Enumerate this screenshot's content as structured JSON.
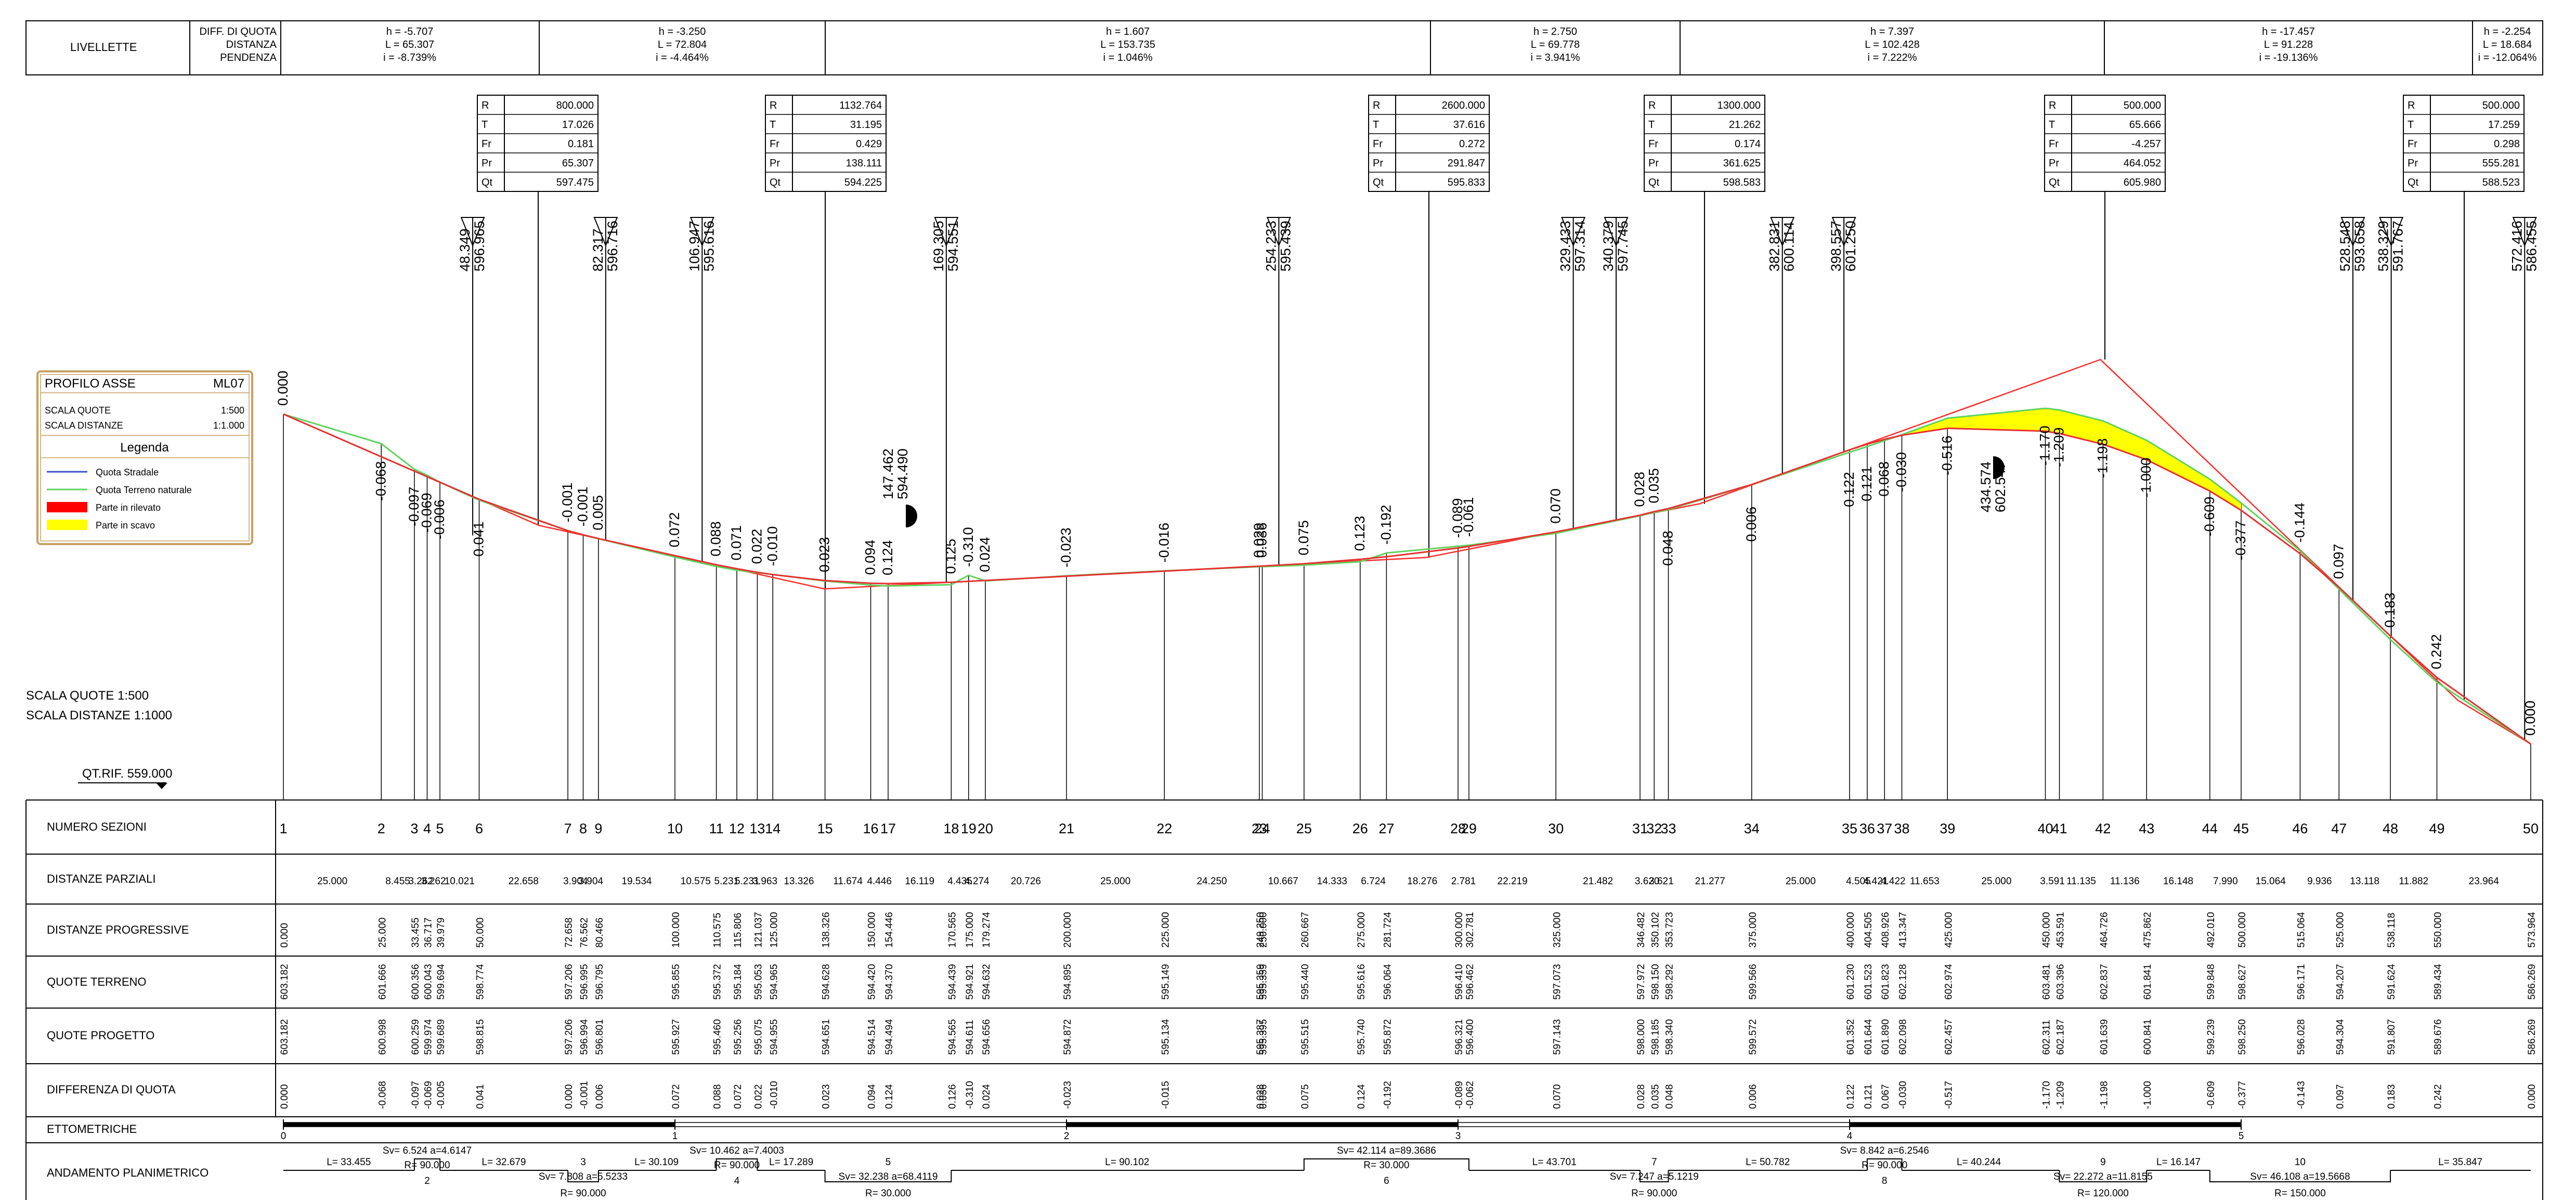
{
  "header": {
    "label_main": "LIVELLETTE",
    "label_mid": [
      "DIFF. DI QUOTA",
      "DISTANZA",
      "PENDENZA"
    ],
    "grades": [
      {
        "h": "h = -5.707",
        "L": "L = 65.307",
        "i": "i = -8.739%"
      },
      {
        "h": "h = -3.250",
        "L": "L = 72.804",
        "i": "i = -4.464%"
      },
      {
        "h": "h = 1.607",
        "L": "L = 153.735",
        "i": "i = 1.046%"
      },
      {
        "h": "h = 2.750",
        "L": "L = 69.778",
        "i": "i = 3.941%"
      },
      {
        "h": "h = 7.397",
        "L": "L = 102.428",
        "i": "i = 7.222%"
      },
      {
        "h": "h = -17.457",
        "L": "L = 91.228",
        "i": "i = -19.136%"
      },
      {
        "h": "h = -2.254",
        "L": "L = 18.684",
        "i": "i = -12.064%"
      }
    ]
  },
  "vertical_curves": {
    "row_labels": [
      "R",
      "T",
      "Fr",
      "Pr",
      "Qt"
    ],
    "items": [
      {
        "values": [
          "800.000",
          "17.026",
          "0.181",
          "65.307",
          "597.475"
        ]
      },
      {
        "values": [
          "1132.764",
          "31.195",
          "0.429",
          "138.111",
          "594.225"
        ]
      },
      {
        "values": [
          "2600.000",
          "37.616",
          "0.272",
          "291.847",
          "595.833"
        ]
      },
      {
        "values": [
          "1300.000",
          "21.262",
          "0.174",
          "361.625",
          "598.583"
        ]
      },
      {
        "values": [
          "500.000",
          "65.666",
          "-4.257",
          "464.052",
          "605.980"
        ]
      },
      {
        "values": [
          "500.000",
          "17.259",
          "0.298",
          "555.281",
          "588.523"
        ]
      }
    ]
  },
  "tangent_points": [
    [
      "48.349",
      "596.965"
    ],
    [
      "82.317",
      "596.716"
    ],
    [
      "106.947",
      "595.616"
    ],
    [
      "169.305",
      "594.551"
    ],
    [
      "254.233",
      "595.439"
    ],
    [
      "329.433",
      "597.314"
    ],
    [
      "340.379",
      "597.745"
    ],
    [
      "382.831",
      "600.114"
    ],
    [
      "398.557",
      "601.250"
    ],
    [
      "528.548",
      "593.658"
    ],
    [
      "538.329",
      "591.767"
    ],
    [
      "572.416",
      "586.455"
    ]
  ],
  "low_point_label": [
    "147.462",
    "594.490"
  ],
  "high_point_label": [
    "434.574",
    "602.547"
  ],
  "left_legend": {
    "title": "PROFILO ASSE",
    "code": "ML07",
    "scale_q_label": "SCALA QUOTE",
    "scale_q_value": "1:500",
    "scale_d_label": "SCALA DISTANZE",
    "scale_d_value": "1:1.000",
    "legend_title": "Legenda",
    "items": [
      {
        "label": "Quota Stradale",
        "color": "#3b50c8"
      },
      {
        "label": "Quota Terreno naturale",
        "color": "#5fd35f"
      },
      {
        "label": "Parte in rilevato",
        "color": "#ff0000"
      },
      {
        "label": "Parte in scavo",
        "color": "#ffff00"
      }
    ]
  },
  "scale_note": {
    "quote": "SCALA QUOTE    1:500",
    "distanze": "SCALA DISTANZE   1:1000"
  },
  "datum": "QT.RIF. 559.000",
  "diffs_plot": [
    "0.000",
    "-0.068",
    "-0.097",
    "-0.069",
    "-0.006",
    "0.041",
    "-0.001",
    "-0.001",
    "0.005",
    "0.072",
    "0.088",
    "0.071",
    "0.022",
    "-0.010",
    "0.023",
    "0.094",
    "0.124",
    "0.125",
    "-0.310",
    "0.024",
    "-0.023",
    "-0.016",
    "0.029",
    "0.036",
    "0.075",
    "0.123",
    "-0.192",
    "-0.089",
    "-0.061",
    "0.070",
    "0.028",
    "0.035",
    "0.048",
    "0.006",
    "0.122",
    "0.121",
    "0.068",
    "-0.030",
    "-0.516",
    "-1.170",
    "-1.209",
    "-1.198",
    "-1.000",
    "-0.609",
    "-0.377",
    "-0.144",
    "0.097",
    "0.183",
    "0.242",
    "0.000"
  ],
  "table": {
    "row_labels": [
      "NUMERO SEZIONI",
      "DISTANZE PARZIALI",
      "DISTANZE PROGRESSIVE",
      "QUOTE TERRENO",
      "QUOTE PROGETTO",
      "DIFFERENZA DI QUOTA",
      "ETTOMETRICHE",
      "ANDAMENTO PLANIMETRICO"
    ],
    "sections": [
      {
        "n": "1",
        "prog": "0.000",
        "terreno": "603.182",
        "progetto": "603.182",
        "diff": "0.000"
      },
      {
        "n": "2",
        "prog": "25.000",
        "terreno": "601.666",
        "progetto": "600.998",
        "diff": "-0.068"
      },
      {
        "n": "3",
        "prog": "33.455",
        "terreno": "600.356",
        "progetto": "600.259",
        "diff": "-0.097"
      },
      {
        "n": "4",
        "prog": "36.717",
        "terreno": "600.043",
        "progetto": "599.974",
        "diff": "-0.069"
      },
      {
        "n": "5",
        "prog": "39.979",
        "terreno": "599.694",
        "progetto": "599.689",
        "diff": "-0.005"
      },
      {
        "n": "6",
        "prog": "50.000",
        "terreno": "598.774",
        "progetto": "598.815",
        "diff": "0.041"
      },
      {
        "n": "7",
        "prog": "72.658",
        "terreno": "597.206",
        "progetto": "597.206",
        "diff": "0.000"
      },
      {
        "n": "8",
        "prog": "76.562",
        "terreno": "596.995",
        "progetto": "596.994",
        "diff": "-0.001"
      },
      {
        "n": "9",
        "prog": "80.466",
        "terreno": "596.795",
        "progetto": "596.801",
        "diff": "0.006"
      },
      {
        "n": "10",
        "prog": "100.000",
        "terreno": "595.855",
        "progetto": "595.927",
        "diff": "0.072"
      },
      {
        "n": "11",
        "prog": "110.575",
        "terreno": "595.372",
        "progetto": "595.460",
        "diff": "0.088"
      },
      {
        "n": "12",
        "prog": "115.806",
        "terreno": "595.184",
        "progetto": "595.256",
        "diff": "0.072"
      },
      {
        "n": "13",
        "prog": "121.037",
        "terreno": "595.053",
        "progetto": "595.075",
        "diff": "0.022"
      },
      {
        "n": "14",
        "prog": "125.000",
        "terreno": "594.965",
        "progetto": "594.955",
        "diff": "-0.010"
      },
      {
        "n": "15",
        "prog": "138.326",
        "terreno": "594.628",
        "progetto": "594.651",
        "diff": "0.023"
      },
      {
        "n": "16",
        "prog": "150.000",
        "terreno": "594.420",
        "progetto": "594.514",
        "diff": "0.094"
      },
      {
        "n": "17",
        "prog": "154.446",
        "terreno": "594.370",
        "progetto": "594.494",
        "diff": "0.124"
      },
      {
        "n": "18",
        "prog": "170.565",
        "terreno": "594.439",
        "progetto": "594.565",
        "diff": "0.126"
      },
      {
        "n": "19",
        "prog": "175.000",
        "terreno": "594.921",
        "progetto": "594.611",
        "diff": "-0.310"
      },
      {
        "n": "20",
        "prog": "179.274",
        "terreno": "594.632",
        "progetto": "594.656",
        "diff": "0.024"
      },
      {
        "n": "21",
        "prog": "200.000",
        "terreno": "594.895",
        "progetto": "594.872",
        "diff": "-0.023"
      },
      {
        "n": "22",
        "prog": "225.000",
        "terreno": "595.149",
        "progetto": "595.134",
        "diff": "-0.015"
      },
      {
        "n": "23",
        "prog": "249.250",
        "terreno": "595.359",
        "progetto": "595.387",
        "diff": "0.028"
      },
      {
        "n": "24",
        "prog": "250.000",
        "terreno": "595.359",
        "progetto": "595.395",
        "diff": "0.036"
      },
      {
        "n": "25",
        "prog": "260.667",
        "terreno": "595.440",
        "progetto": "595.515",
        "diff": "0.075"
      },
      {
        "n": "26",
        "prog": "275.000",
        "terreno": "595.616",
        "progetto": "595.740",
        "diff": "0.124"
      },
      {
        "n": "27",
        "prog": "281.724",
        "terreno": "596.064",
        "progetto": "595.872",
        "diff": "-0.192"
      },
      {
        "n": "28",
        "prog": "300.000",
        "terreno": "596.410",
        "progetto": "596.321",
        "diff": "-0.089"
      },
      {
        "n": "29",
        "prog": "302.781",
        "terreno": "596.462",
        "progetto": "596.400",
        "diff": "-0.062"
      },
      {
        "n": "30",
        "prog": "325.000",
        "terreno": "597.073",
        "progetto": "597.143",
        "diff": "0.070"
      },
      {
        "n": "31",
        "prog": "346.482",
        "terreno": "597.972",
        "progetto": "598.000",
        "diff": "0.028"
      },
      {
        "n": "32",
        "prog": "350.102",
        "terreno": "598.150",
        "progetto": "598.185",
        "diff": "0.035"
      },
      {
        "n": "33",
        "prog": "353.723",
        "terreno": "598.292",
        "progetto": "598.340",
        "diff": "0.048"
      },
      {
        "n": "34",
        "prog": "375.000",
        "terreno": "599.566",
        "progetto": "599.572",
        "diff": "0.006"
      },
      {
        "n": "35",
        "prog": "400.000",
        "terreno": "601.230",
        "progetto": "601.352",
        "diff": "0.122"
      },
      {
        "n": "36",
        "prog": "404.505",
        "terreno": "601.523",
        "progetto": "601.644",
        "diff": "0.121"
      },
      {
        "n": "37",
        "prog": "408.926",
        "terreno": "601.823",
        "progetto": "601.890",
        "diff": "0.067"
      },
      {
        "n": "38",
        "prog": "413.347",
        "terreno": "602.128",
        "progetto": "602.098",
        "diff": "-0.030"
      },
      {
        "n": "39",
        "prog": "425.000",
        "terreno": "602.974",
        "progetto": "602.457",
        "diff": "-0.517"
      },
      {
        "n": "40",
        "prog": "450.000",
        "terreno": "603.481",
        "progetto": "602.311",
        "diff": "-1.170"
      },
      {
        "n": "41",
        "prog": "453.591",
        "terreno": "603.396",
        "progetto": "602.187",
        "diff": "-1.209"
      },
      {
        "n": "42",
        "prog": "464.726",
        "terreno": "602.837",
        "progetto": "601.639",
        "diff": "-1.198"
      },
      {
        "n": "43",
        "prog": "475.862",
        "terreno": "601.841",
        "progetto": "600.841",
        "diff": "-1.000"
      },
      {
        "n": "44",
        "prog": "492.010",
        "terreno": "599.848",
        "progetto": "599.239",
        "diff": "-0.609"
      },
      {
        "n": "45",
        "prog": "500.000",
        "terreno": "598.627",
        "progetto": "598.250",
        "diff": "-0.377"
      },
      {
        "n": "46",
        "prog": "515.064",
        "terreno": "596.171",
        "progetto": "596.028",
        "diff": "-0.143"
      },
      {
        "n": "47",
        "prog": "525.000",
        "terreno": "594.207",
        "progetto": "594.304",
        "diff": "0.097"
      },
      {
        "n": "48",
        "prog": "538.118",
        "terreno": "591.624",
        "progetto": "591.807",
        "diff": "0.183"
      },
      {
        "n": "49",
        "prog": "550.000",
        "terreno": "589.434",
        "progetto": "589.676",
        "diff": "0.242"
      },
      {
        "n": "50",
        "prog": "573.964",
        "terreno": "586.269",
        "progetto": "586.269",
        "diff": "0.000"
      }
    ],
    "partials": [
      "25.000",
      "8.455",
      "3.262",
      "3.262",
      "10.021",
      "22.658",
      "3.904",
      "3.904",
      "19.534",
      "10.575",
      "5.231",
      "5.231",
      "3.963",
      "13.326",
      "11.674",
      "4.446",
      "16.119",
      "4.435",
      "4.274",
      "20.726",
      "25.000",
      "24.250",
      "",
      "10.667",
      "14.333",
      "6.724",
      "18.276",
      "2.781",
      "22.219",
      "21.482",
      "3.620",
      "3.621",
      "21.277",
      "25.000",
      "4.505",
      "4.421",
      "4.422",
      "11.653",
      "25.000",
      "3.591",
      "11.135",
      "11.136",
      "16.148",
      "7.990",
      "15.064",
      "9.936",
      "13.118",
      "11.882",
      "23.964"
    ],
    "ettometriche": [
      "0",
      "1",
      "2",
      "3",
      "4",
      "5"
    ],
    "planimetrico": {
      "lengths": [
        "L= 33.455",
        "L= 32.679",
        "L= 30.109",
        "L= 17.289",
        "L= 90.102",
        "L= 43.701",
        "L= 50.782",
        "L= 40.244",
        "L= 16.147",
        "L= 35.847"
      ],
      "curves": [
        {
          "num": "2",
          "sv": "Sv= 6.524  a=4.6147",
          "r": "R= 90.000"
        },
        {
          "num": "3",
          "sv": "Sv= 7.808  a=5.5233",
          "r": "R= 90.000"
        },
        {
          "num": "4",
          "sv": "Sv= 10.462  a=7.4003",
          "r": "R= 90.000"
        },
        {
          "num": "5",
          "sv": "Sv= 32.238  a=68.4119",
          "r": "R= 30.000"
        },
        {
          "num": "6",
          "sv": "Sv= 42.114  a=89.3686",
          "r": "R= 30.000"
        },
        {
          "num": "7",
          "sv": "Sv= 7.247  a=5.1219",
          "r": "R= 90.000"
        },
        {
          "num": "8",
          "sv": "Sv= 8.842  a=6.2546",
          "r": "R= 90.000"
        },
        {
          "num": "9",
          "sv": "Sv= 22.272  a=11.8155",
          "r": "R= 120.000"
        },
        {
          "num": "10",
          "sv": "Sv= 46.108  a=19.5668",
          "r": "R= 150.000"
        }
      ]
    }
  }
}
